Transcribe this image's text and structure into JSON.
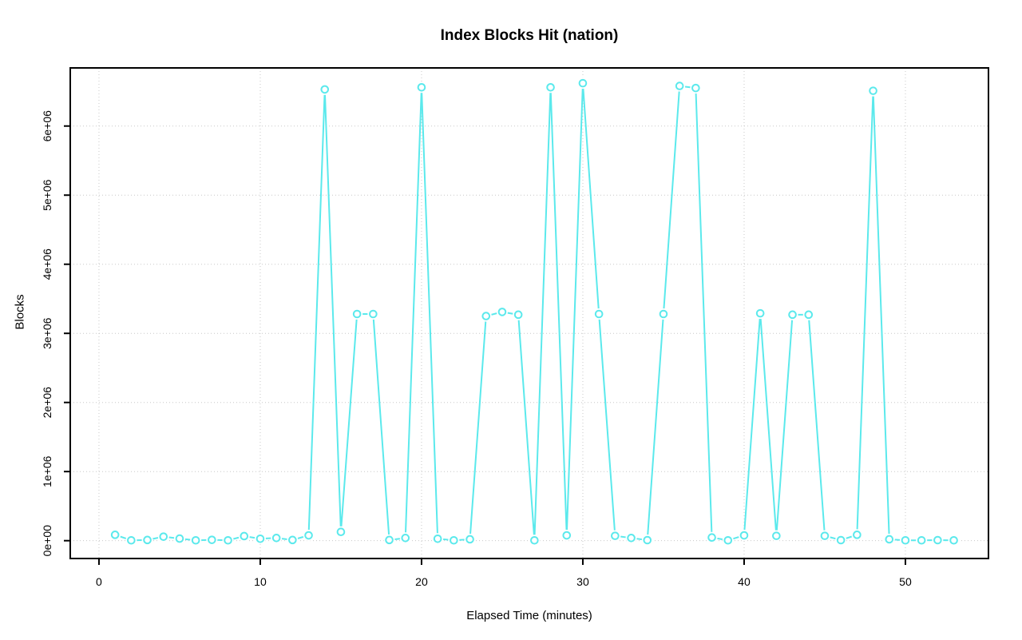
{
  "chart_data": {
    "type": "line",
    "title": "Index Blocks Hit (nation)",
    "xlabel": "Elapsed Time (minutes)",
    "ylabel": "Blocks",
    "x": [
      1,
      2,
      3,
      4,
      5,
      6,
      7,
      8,
      9,
      10,
      11,
      12,
      13,
      14,
      15,
      16,
      17,
      18,
      19,
      20,
      21,
      22,
      23,
      24,
      25,
      26,
      27,
      28,
      29,
      30,
      31,
      32,
      33,
      34,
      35,
      36,
      37,
      38,
      39,
      40,
      41,
      42,
      43,
      44,
      45,
      46,
      47,
      48,
      49,
      50,
      51,
      52,
      53
    ],
    "values": [
      85000,
      5000,
      10000,
      58000,
      30000,
      5000,
      12000,
      5000,
      66000,
      28000,
      39000,
      10000,
      77000,
      6530000,
      127000,
      3280000,
      3280000,
      10000,
      39000,
      6560000,
      28000,
      5000,
      20000,
      3250000,
      3310000,
      3270000,
      5000,
      6560000,
      77000,
      6620000,
      3280000,
      70000,
      39000,
      8000,
      3280000,
      6580000,
      6550000,
      46000,
      5000,
      77000,
      3290000,
      70000,
      3270000,
      3270000,
      70000,
      8000,
      85000,
      6510000,
      20000,
      5000,
      5000,
      8000,
      5000
    ],
    "xticks": [
      0,
      10,
      20,
      30,
      40,
      50
    ],
    "yticks": [
      0,
      1000000,
      2000000,
      3000000,
      4000000,
      5000000,
      6000000
    ],
    "ytick_labels": [
      "0e+00",
      "1e+06",
      "2e+06",
      "3e+06",
      "4e+06",
      "5e+06",
      "6e+06"
    ],
    "xlim": [
      -1.78,
      55.15
    ],
    "ylim": [
      -258000,
      6841000
    ],
    "grid": true,
    "legend_position": "none",
    "marker": "open-circle",
    "line_color": "#5BE9EC",
    "grid_color": "#c8c8c8",
    "axis_color": "#000000"
  }
}
